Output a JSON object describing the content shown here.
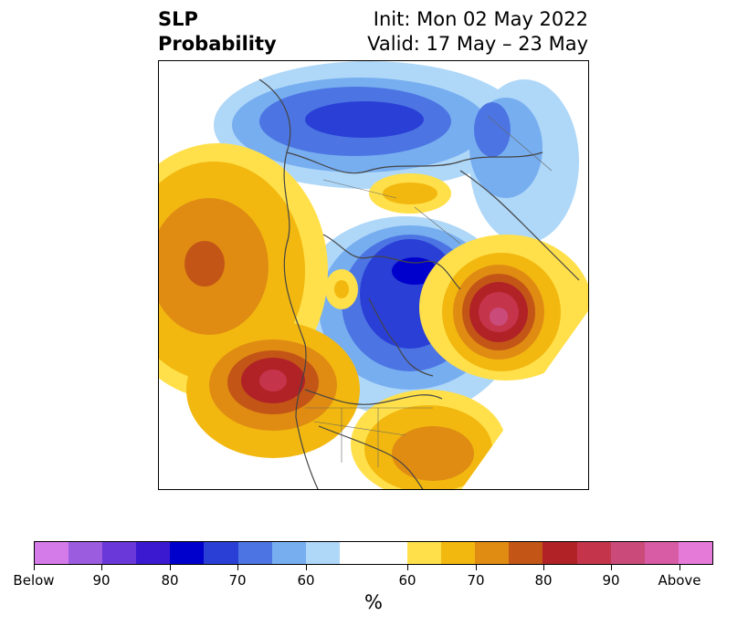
{
  "header": {
    "variable": "SLP",
    "product": "Probability",
    "init": "Init: Mon 02 May 2022",
    "valid": "Valid: 17 May – 23 May"
  },
  "colorbar": {
    "unit": "%",
    "colors": [
      "#d57be9",
      "#9b5ce0",
      "#6a37d8",
      "#3b19d0",
      "#0000cc",
      "#2a3fd6",
      "#4c75e3",
      "#77aef0",
      "#aed7f8",
      "#ffffff",
      "#ffe04a",
      "#f2b80f",
      "#e08c13",
      "#c35616",
      "#b12226",
      "#c4354c",
      "#ca4b7a",
      "#d75ca5",
      "#e57ad9"
    ],
    "segment_weights": [
      1,
      1,
      1,
      1,
      1,
      1,
      1,
      1,
      1,
      2,
      1,
      1,
      1,
      1,
      1,
      1,
      1,
      1,
      1
    ],
    "tick_labels": [
      "Below",
      "90",
      "80",
      "70",
      "60",
      "60",
      "70",
      "80",
      "90",
      "Above"
    ],
    "tick_boundaries": [
      0,
      2,
      4,
      6,
      8,
      11,
      13,
      15,
      17,
      19
    ]
  },
  "map": {
    "projection": "polar stereographic, North America / Arctic",
    "shading": {
      "below_normal_color": "#2a3fd6",
      "above_normal_color": "#b12226"
    }
  }
}
